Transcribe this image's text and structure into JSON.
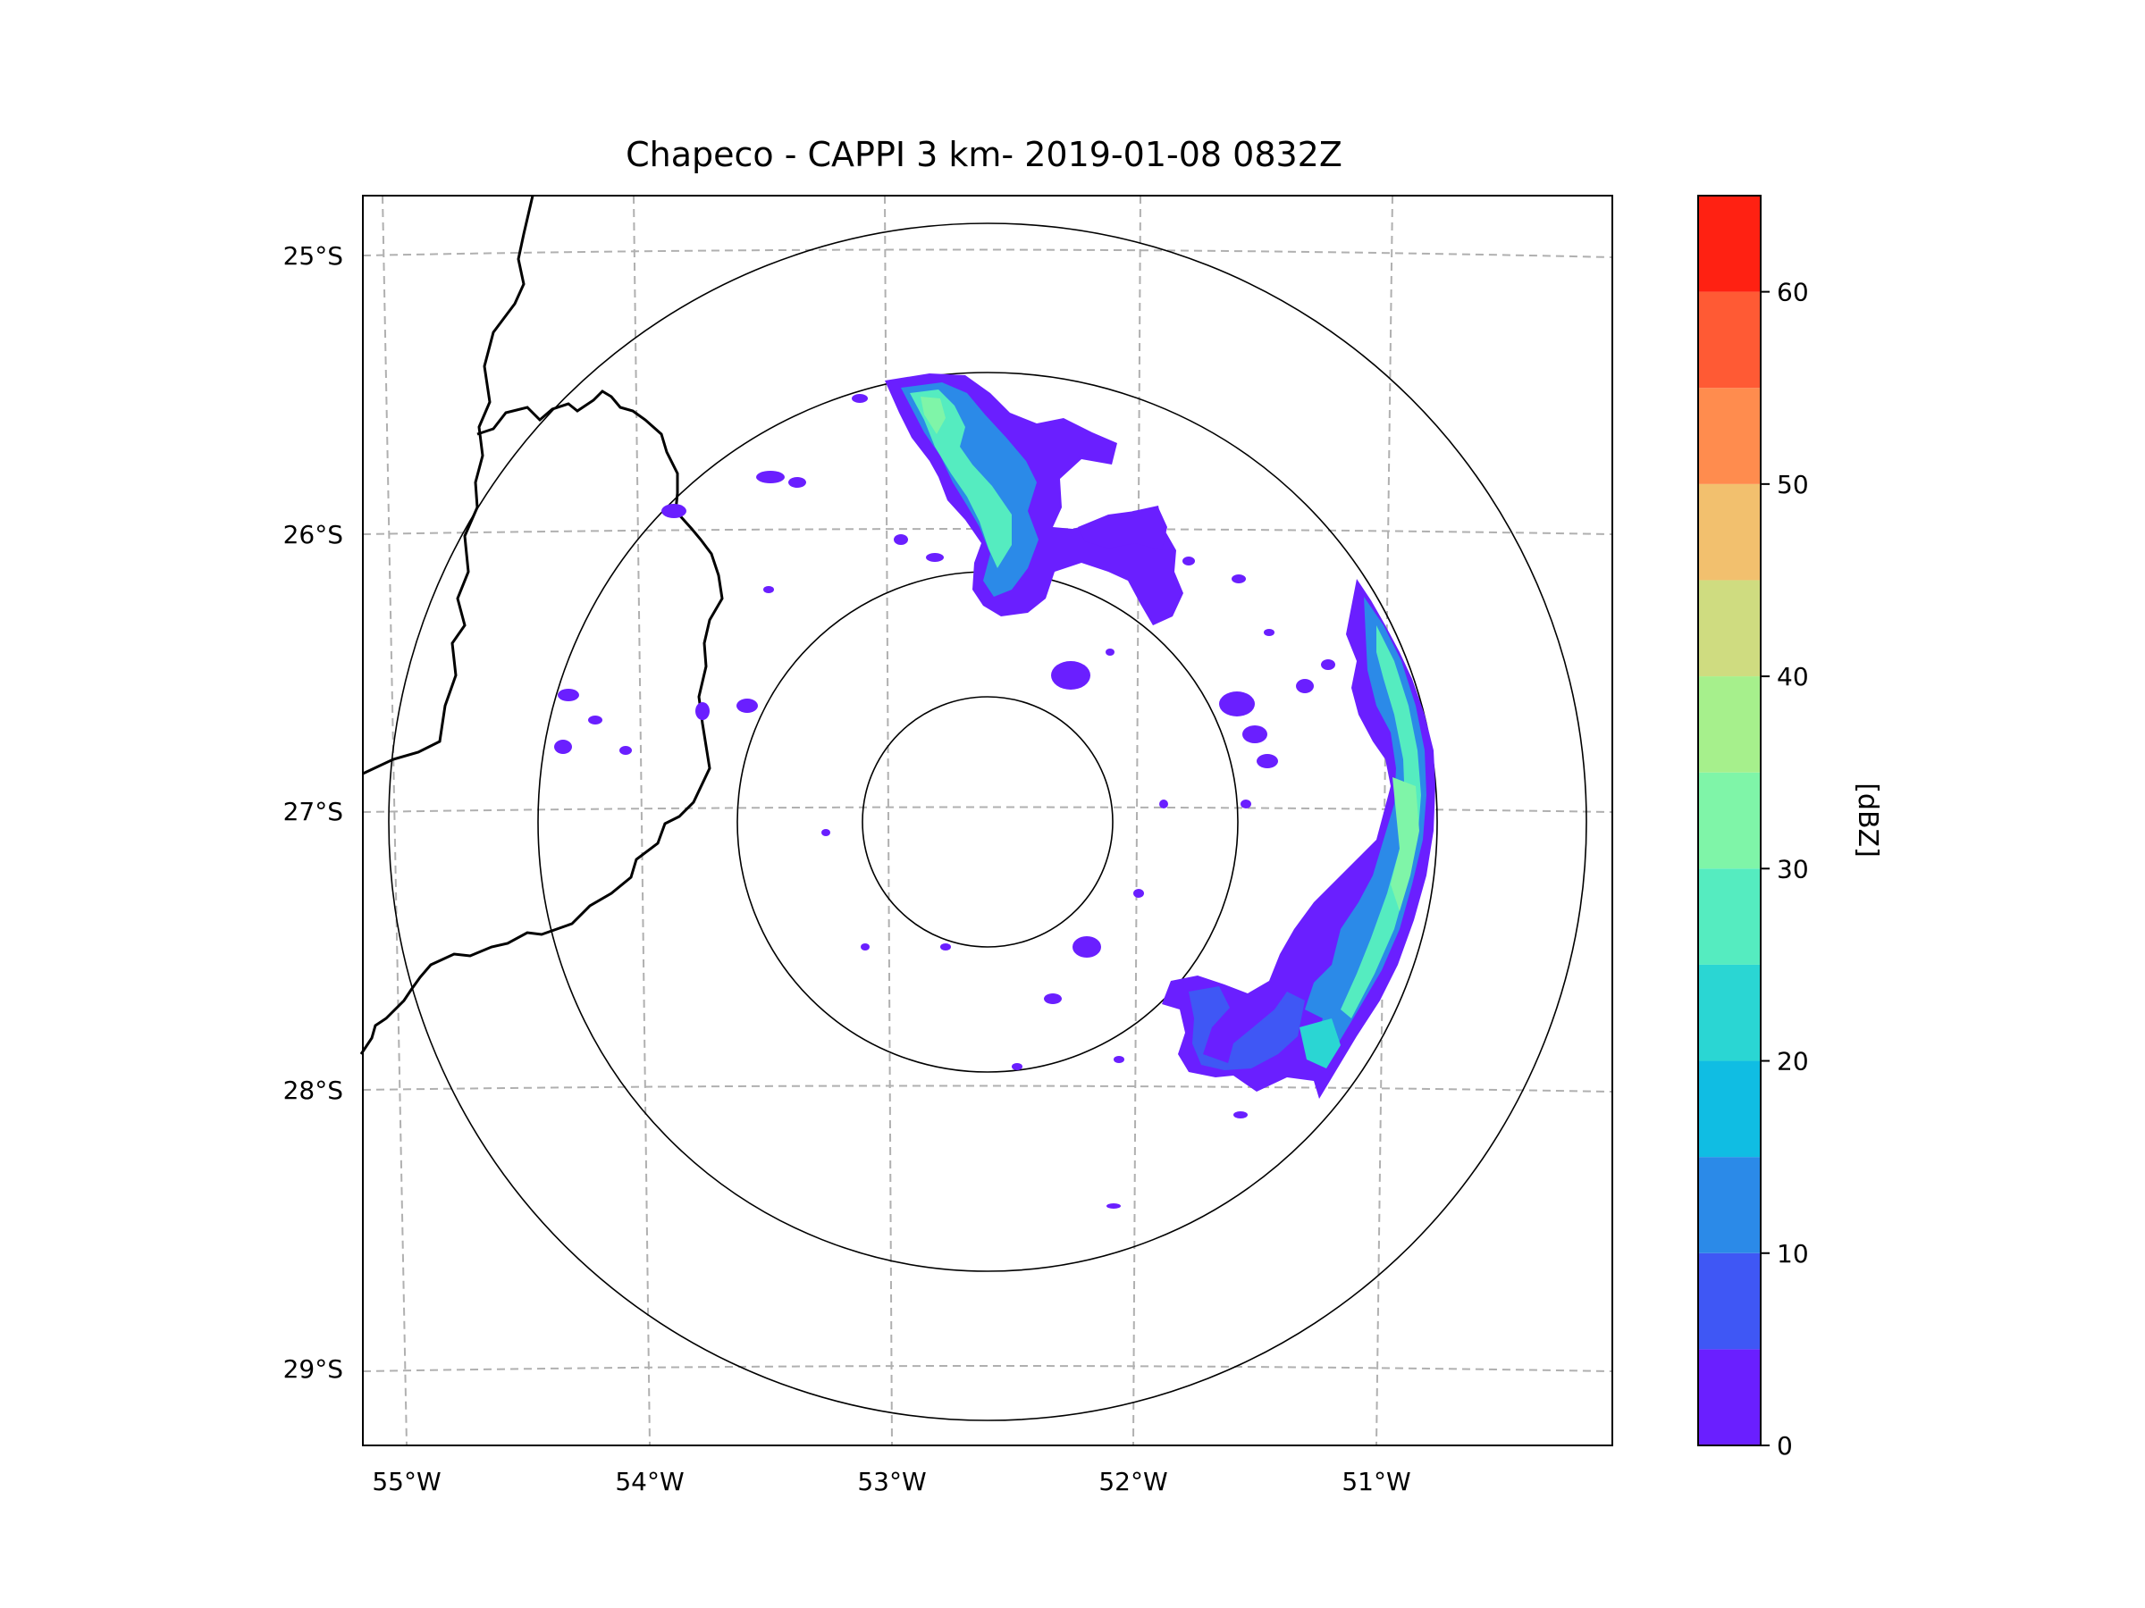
{
  "title": "Chapeco - CAPPI 3 km- 2019-01-08 0832Z",
  "map": {
    "lat_labels": [
      "25°S",
      "26°S",
      "27°S",
      "28°S",
      "29°S"
    ],
    "lon_labels": [
      "55°W",
      "54°W",
      "53°W",
      "52°W",
      "51°W"
    ],
    "lat_values": [
      -25,
      -26,
      -27,
      -28,
      -29
    ],
    "lon_values": [
      -55,
      -54,
      -53,
      -52,
      -51
    ],
    "extent": {
      "lon_min": -55.18,
      "lon_max": -50.1,
      "lat_min": -29.28,
      "lat_max": -24.78
    },
    "radar_center": {
      "lon": -52.6,
      "lat": -27.02
    },
    "range_rings_deg": [
      0.45,
      0.9,
      1.62,
      2.16
    ]
  },
  "colorbar": {
    "label": "[dBZ]",
    "min": 0,
    "max": 65,
    "ticks": [
      "0",
      "10",
      "20",
      "30",
      "40",
      "50",
      "60"
    ],
    "tick_values": [
      0,
      10,
      20,
      30,
      40,
      50,
      60
    ],
    "levels": [
      0,
      5,
      10,
      15,
      20,
      25,
      30,
      35,
      40,
      45,
      50,
      55,
      60,
      65
    ],
    "colors": [
      "#6a1fff",
      "#3f57f5",
      "#2b8ae8",
      "#10bde3",
      "#2ad6d3",
      "#55ecc0",
      "#7ff5a8",
      "#a6f08c",
      "#cfdc80",
      "#f2c06e",
      "#ff8c4e",
      "#ff5a34",
      "#ff2112"
    ]
  },
  "chart_data": {
    "type": "heatmap",
    "title": "Chapeco - CAPPI 3 km- 2019-01-08 0832Z",
    "xlabel": "",
    "ylabel": "",
    "colorbar_label": "[dBZ]",
    "colorbar_range": [
      0,
      65
    ],
    "precip_regions": [
      {
        "name": "northern band",
        "dbz_range": [
          0,
          35
        ]
      },
      {
        "name": "northeast cluster",
        "dbz_range": [
          0,
          25
        ]
      },
      {
        "name": "eastern band",
        "dbz_range": [
          0,
          35
        ]
      },
      {
        "name": "southeast cluster",
        "dbz_range": [
          0,
          25
        ]
      }
    ]
  }
}
